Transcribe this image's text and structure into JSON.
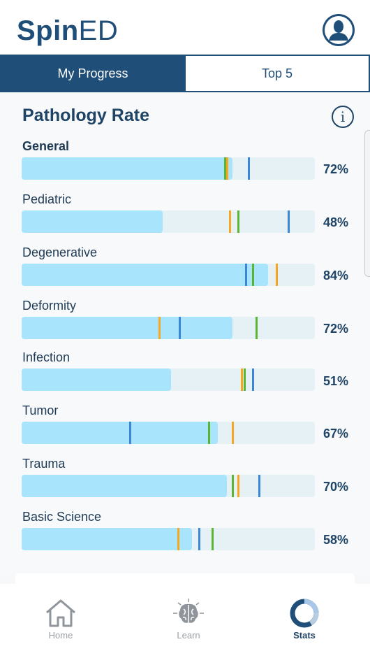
{
  "app": {
    "name_bold": "Spin",
    "name_light": "ED"
  },
  "tabs": [
    {
      "label": "My Progress",
      "active": true
    },
    {
      "label": "Top 5",
      "active": false
    }
  ],
  "section": {
    "title": "Pathology Rate",
    "info_glyph": "i"
  },
  "colors": {
    "accent": "#1f4e78",
    "fill": "#a8e4fb",
    "track": "#e6f1f6",
    "marker_orange": "#f5a623",
    "marker_green": "#5cb531",
    "marker_blue": "#3b86d6"
  },
  "rows": [
    {
      "label": "General",
      "percent_label": "72%",
      "value": 72,
      "markers": {
        "orange": 70,
        "green": 69.5,
        "blue": 77.5
      }
    },
    {
      "label": "Pediatric",
      "percent_label": "48%",
      "value": 48,
      "markers": {
        "orange": 71,
        "green": 74,
        "blue": 91
      }
    },
    {
      "label": "Degenerative",
      "percent_label": "84%",
      "value": 84,
      "markers": {
        "orange": 87,
        "green": 79,
        "blue": 76.5
      }
    },
    {
      "label": "Deformity",
      "percent_label": "72%",
      "value": 72,
      "markers": {
        "orange": 47,
        "green": 80,
        "blue": 54
      }
    },
    {
      "label": "Infection",
      "percent_label": "51%",
      "value": 51,
      "markers": {
        "orange": 75,
        "green": 76,
        "blue": 79
      }
    },
    {
      "label": "Tumor",
      "percent_label": "67%",
      "value": 67,
      "markers": {
        "orange": 72,
        "green": 64,
        "blue": 37
      }
    },
    {
      "label": "Trauma",
      "percent_label": "70%",
      "value": 70,
      "markers": {
        "orange": 74,
        "green": 72,
        "blue": 81
      }
    },
    {
      "label": "Basic Science",
      "percent_label": "58%",
      "value": 58,
      "markers": {
        "orange": 53.5,
        "green": 65,
        "blue": 60.5
      }
    }
  ],
  "nav": [
    {
      "label": "Home",
      "icon": "house-icon",
      "active": false
    },
    {
      "label": "Learn",
      "icon": "brain-icon",
      "active": false
    },
    {
      "label": "Stats",
      "icon": "donut-chart-icon",
      "active": true
    }
  ]
}
